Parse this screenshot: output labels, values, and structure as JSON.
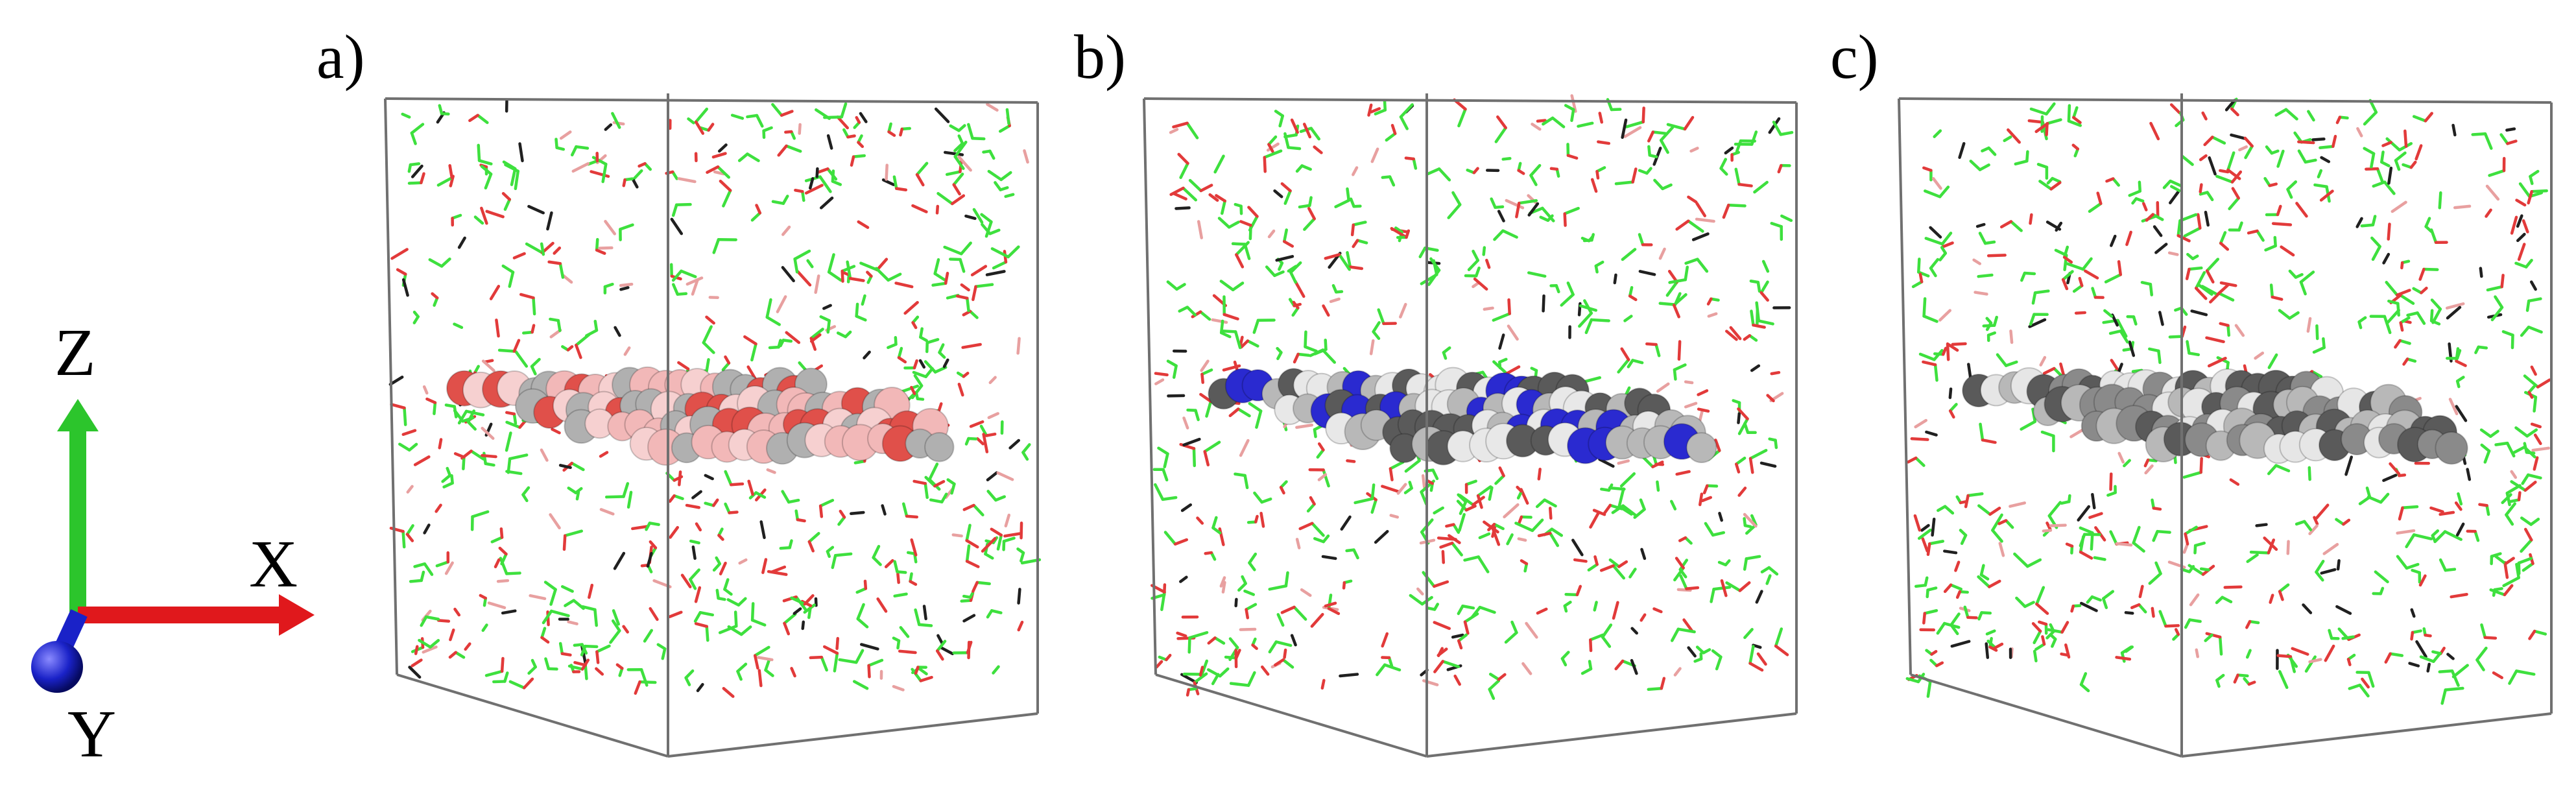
{
  "axes": {
    "x_label": "X",
    "y_label": "Y",
    "z_label": "Z",
    "colors": {
      "x": "#e0181c",
      "y": "#1a22c8",
      "z": "#2cc52c"
    }
  },
  "panels": [
    {
      "label": "a)",
      "slab_colors": [
        "#f2b8b8",
        "#b0b0b0",
        "#e0504a",
        "#f6d0d0"
      ]
    },
    {
      "label": "b)",
      "slab_colors": [
        "#5a5a5a",
        "#b8b8b8",
        "#2a2ad0",
        "#e8e8e8"
      ]
    },
    {
      "label": "c)",
      "slab_colors": [
        "#5a5a5a",
        "#b8b8b8",
        "#e6e6e6",
        "#8a8a8a"
      ]
    }
  ],
  "solvent_colors": {
    "carbon": "#3ee03e",
    "oxygen": "#e23a3a",
    "hydrogen": "#f0b8b8",
    "dark": "#202020",
    "water": "#e8a0a0"
  },
  "box_line_color": "#707070"
}
